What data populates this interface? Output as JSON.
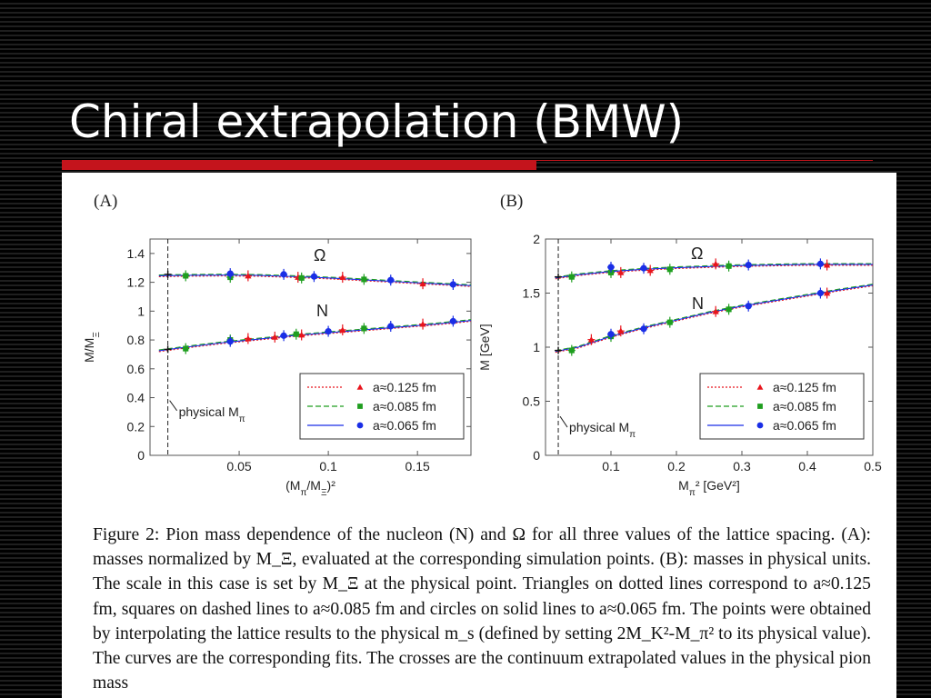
{
  "slide": {
    "title": "Chiral extrapolation (BMW)"
  },
  "figure": {
    "caption_lines": [
      "Figure 2:  Pion mass dependence of the nucleon (N) and Ω for all three values of the lattice",
      "spacing. (A): masses normalized by M_Ξ, evaluated at the corresponding simulation points. (B):",
      "masses in physical units.  The scale in this case is set by M_Ξ at the physical point.  Triangles",
      "on dotted lines correspond to a≈0.125 fm, squares on dashed lines to a≈0.085 fm and circles",
      "on solid lines to a≈0.065 fm.  The points were obtained by interpolating the lattice results",
      "to the physical m_s (defined by setting 2M_K²-M_π² to its physical value).  The curves are the",
      "corresponding fits. The crosses are the continuum extrapolated values in the physical pion mass"
    ]
  },
  "chart_data": [
    {
      "type": "scatter",
      "panel_label": "(A)",
      "xlabel": "(M_π/M_Ξ)²",
      "ylabel": "M/M_Ξ",
      "xlim": [
        0,
        0.18
      ],
      "ylim": [
        0,
        1.5
      ],
      "xticks": [
        0.05,
        0.1,
        0.15
      ],
      "xtick_labels": [
        "0.05",
        "0.1",
        "0.15"
      ],
      "yticks": [
        0,
        0.2,
        0.4,
        0.6,
        0.8,
        1,
        1.2,
        1.4
      ],
      "ytick_labels": [
        "0",
        "0.2",
        "0.4",
        "0.6",
        "0.8",
        "1",
        "1.2",
        "1.4"
      ],
      "physical_point": {
        "x": 0.01,
        "label": "physical M_π"
      },
      "annotations": [
        "Ω",
        "N"
      ],
      "legend": {
        "placement": "bottom-right",
        "entries": [
          "a≈0.125 fm",
          "a≈0.085 fm",
          "a≈0.065 fm"
        ]
      },
      "series": [
        {
          "name": "a≈0.125 fm",
          "marker": "triangle",
          "line": "dotted",
          "color": "#e8141c",
          "omega": [
            [
              0.055,
              1.245
            ],
            [
              0.083,
              1.235
            ],
            [
              0.108,
              1.235
            ],
            [
              0.153,
              1.19
            ]
          ],
          "nucleon": [
            [
              0.055,
              0.81
            ],
            [
              0.07,
              0.82
            ],
            [
              0.085,
              0.835
            ],
            [
              0.108,
              0.87
            ],
            [
              0.153,
              0.91
            ]
          ]
        },
        {
          "name": "a≈0.085 fm",
          "marker": "square",
          "line": "dashed",
          "color": "#1f9e1f",
          "omega": [
            [
              0.02,
              1.245
            ],
            [
              0.045,
              1.235
            ],
            [
              0.085,
              1.23
            ],
            [
              0.12,
              1.22
            ]
          ],
          "nucleon": [
            [
              0.02,
              0.74
            ],
            [
              0.045,
              0.8
            ],
            [
              0.082,
              0.84
            ],
            [
              0.12,
              0.88
            ]
          ]
        },
        {
          "name": "a≈0.065 fm",
          "marker": "circle",
          "line": "solid",
          "color": "#1a2ee6",
          "omega": [
            [
              0.045,
              1.26
            ],
            [
              0.075,
              1.255
            ],
            [
              0.092,
              1.24
            ],
            [
              0.135,
              1.215
            ],
            [
              0.17,
              1.185
            ]
          ],
          "nucleon": [
            [
              0.045,
              0.79
            ],
            [
              0.075,
              0.83
            ],
            [
              0.1,
              0.86
            ],
            [
              0.135,
              0.895
            ],
            [
              0.17,
              0.93
            ]
          ]
        }
      ],
      "continuum": {
        "omega": [
          0.01,
          1.255
        ],
        "nucleon": [
          0.01,
          0.735
        ]
      },
      "fit_curves": {
        "omega": [
          [
            0.005,
            1.245
          ],
          [
            0.02,
            1.248
          ],
          [
            0.04,
            1.25
          ],
          [
            0.06,
            1.248
          ],
          [
            0.08,
            1.24
          ],
          [
            0.1,
            1.23
          ],
          [
            0.12,
            1.217
          ],
          [
            0.14,
            1.203
          ],
          [
            0.16,
            1.19
          ],
          [
            0.18,
            1.177
          ]
        ],
        "nucleon": [
          [
            0.005,
            0.725
          ],
          [
            0.02,
            0.75
          ],
          [
            0.04,
            0.78
          ],
          [
            0.06,
            0.805
          ],
          [
            0.08,
            0.83
          ],
          [
            0.1,
            0.85
          ],
          [
            0.12,
            0.87
          ],
          [
            0.14,
            0.89
          ],
          [
            0.16,
            0.91
          ],
          [
            0.18,
            0.935
          ]
        ]
      }
    },
    {
      "type": "scatter",
      "panel_label": "(B)",
      "xlabel": "M_π² [GeV²]",
      "ylabel": "M [GeV]",
      "xlim": [
        0,
        0.5
      ],
      "ylim": [
        0,
        2
      ],
      "xticks": [
        0.1,
        0.2,
        0.3,
        0.4,
        0.5
      ],
      "xtick_labels": [
        "0.1",
        "0.2",
        "0.3",
        "0.4",
        "0.5"
      ],
      "yticks": [
        0,
        0.5,
        1,
        1.5,
        2
      ],
      "ytick_labels": [
        "0",
        "0.5",
        "1",
        "1.5",
        "2"
      ],
      "physical_point": {
        "x": 0.0195,
        "label": "physical M_π"
      },
      "annotations": [
        "Ω",
        "N"
      ],
      "legend": {
        "placement": "bottom-right",
        "entries": [
          "a≈0.125 fm",
          "a≈0.085 fm",
          "a≈0.065 fm"
        ]
      },
      "series": [
        {
          "name": "a≈0.125 fm",
          "marker": "triangle",
          "line": "dotted",
          "color": "#e8141c",
          "omega": [
            [
              0.115,
              1.69
            ],
            [
              0.16,
              1.71
            ],
            [
              0.26,
              1.77
            ],
            [
              0.43,
              1.76
            ]
          ],
          "nucleon": [
            [
              0.07,
              1.07
            ],
            [
              0.115,
              1.15
            ],
            [
              0.26,
              1.33
            ],
            [
              0.43,
              1.5
            ]
          ]
        },
        {
          "name": "a≈0.085 fm",
          "marker": "square",
          "line": "dashed",
          "color": "#1f9e1f",
          "omega": [
            [
              0.04,
              1.65
            ],
            [
              0.1,
              1.69
            ],
            [
              0.19,
              1.72
            ],
            [
              0.28,
              1.75
            ]
          ],
          "nucleon": [
            [
              0.04,
              0.97
            ],
            [
              0.1,
              1.1
            ],
            [
              0.19,
              1.23
            ],
            [
              0.28,
              1.35
            ]
          ]
        },
        {
          "name": "a≈0.065 fm",
          "marker": "circle",
          "line": "solid",
          "color": "#1a2ee6",
          "omega": [
            [
              0.1,
              1.74
            ],
            [
              0.15,
              1.73
            ],
            [
              0.31,
              1.76
            ],
            [
              0.42,
              1.77
            ]
          ],
          "nucleon": [
            [
              0.1,
              1.12
            ],
            [
              0.15,
              1.17
            ],
            [
              0.31,
              1.38
            ],
            [
              0.42,
              1.5
            ]
          ]
        }
      ],
      "continuum": {
        "omega": [
          0.0195,
          1.65
        ],
        "nucleon": [
          0.0195,
          0.97
        ]
      },
      "fit_curves": {
        "omega": [
          [
            0.015,
            1.64
          ],
          [
            0.05,
            1.67
          ],
          [
            0.1,
            1.7
          ],
          [
            0.15,
            1.72
          ],
          [
            0.2,
            1.735
          ],
          [
            0.25,
            1.745
          ],
          [
            0.3,
            1.755
          ],
          [
            0.35,
            1.76
          ],
          [
            0.4,
            1.765
          ],
          [
            0.45,
            1.765
          ],
          [
            0.5,
            1.765
          ]
        ],
        "nucleon": [
          [
            0.015,
            0.96
          ],
          [
            0.05,
            1.0
          ],
          [
            0.1,
            1.1
          ],
          [
            0.15,
            1.18
          ],
          [
            0.2,
            1.25
          ],
          [
            0.25,
            1.32
          ],
          [
            0.3,
            1.38
          ],
          [
            0.35,
            1.43
          ],
          [
            0.4,
            1.48
          ],
          [
            0.45,
            1.53
          ],
          [
            0.5,
            1.575
          ]
        ]
      }
    }
  ]
}
